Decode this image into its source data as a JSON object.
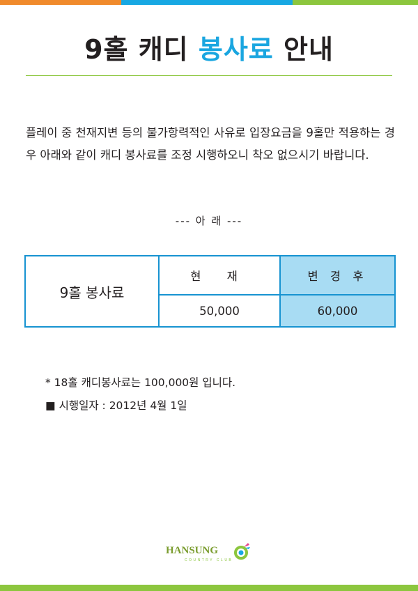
{
  "colors": {
    "orange": "#f08a2c",
    "blue": "#17a8e3",
    "green": "#8cc63e",
    "accent_text": "#1aa6e0",
    "header_cell_bg": "#a8dcf3",
    "table_border": "#1793d1",
    "rule": "#8cc63e"
  },
  "title": {
    "part1": "9홀 캐디 ",
    "accent": "봉사료",
    "part2": " 안내"
  },
  "body": "플레이 중 천재지변 등의 불가항력적인 사유로 입장요금을 9홀만 적용하는 경우 아래와 같이 캐디 봉사료를 조정 시행하오니 착오 없으시기 바랍니다.",
  "notice": "--- 아   래 ---",
  "table": {
    "row_label": "9홀 봉사료",
    "col_current": "현 재",
    "col_after": "변 경 후",
    "current_value": "50,000",
    "after_value": "60,000"
  },
  "footnotes": {
    "note1": "* 18홀 캐디봉사료는 100,000원 입니다.",
    "note2": "■ 시행일자 : 2012년 4월 1일"
  },
  "logo": {
    "name": "HANSUNG",
    "sub": "COUNTRY CLUB",
    "icon": "hansung-emblem-icon"
  }
}
